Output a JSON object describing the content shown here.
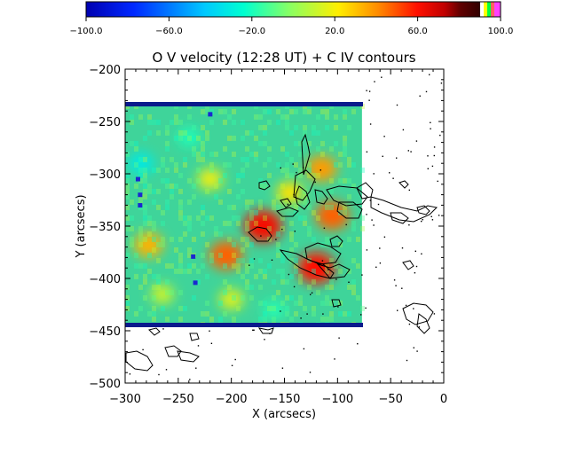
{
  "chart_data": {
    "type": "heatmap",
    "title": "O V velocity (12:28 UT) + C IV contours",
    "xlabel": "X (arcsecs)",
    "ylabel": "Y (arcsecs)",
    "xlim": [
      -300,
      0
    ],
    "ylim": [
      -500,
      -200
    ],
    "xticks": [
      -300,
      -250,
      -200,
      -150,
      -100,
      -50,
      0
    ],
    "yticks": [
      -200,
      -250,
      -300,
      -350,
      -400,
      -450,
      -500
    ],
    "xticklabels": [
      "−300",
      "−250",
      "−200",
      "−150",
      "−100",
      "−50",
      "0"
    ],
    "yticklabels": [
      "−200",
      "−250",
      "−300",
      "−350",
      "−400",
      "−450",
      "−500"
    ],
    "colorbar": {
      "range": [
        -100.0,
        100.0
      ],
      "ticks": [
        -100,
        -60,
        -20,
        20,
        60,
        100
      ],
      "ticklabels": [
        "−100.0",
        "−60.0",
        "−20.0",
        "20.0",
        "60.0",
        "100.0"
      ],
      "colormap": "rainbow (blue-cyan-green-yellow-red)"
    },
    "raster_extent": {
      "x": [
        -300,
        -77
      ],
      "y": [
        -445,
        -233
      ]
    },
    "velocity_blobs": [
      {
        "x": -170,
        "y": -350,
        "value": 70
      },
      {
        "x": -120,
        "y": -390,
        "value": 68
      },
      {
        "x": -105,
        "y": -340,
        "value": 55
      },
      {
        "x": -115,
        "y": -295,
        "value": 45
      },
      {
        "x": -205,
        "y": -378,
        "value": 55
      },
      {
        "x": -278,
        "y": -368,
        "value": 40
      },
      {
        "x": -145,
        "y": -318,
        "value": 30
      },
      {
        "x": -220,
        "y": -305,
        "value": 25
      },
      {
        "x": -200,
        "y": -420,
        "value": 22
      },
      {
        "x": -265,
        "y": -415,
        "value": 18
      },
      {
        "x": -285,
        "y": -290,
        "value": -28
      },
      {
        "x": -240,
        "y": -265,
        "value": -15
      },
      {
        "x": -160,
        "y": -430,
        "value": -14
      }
    ]
  }
}
